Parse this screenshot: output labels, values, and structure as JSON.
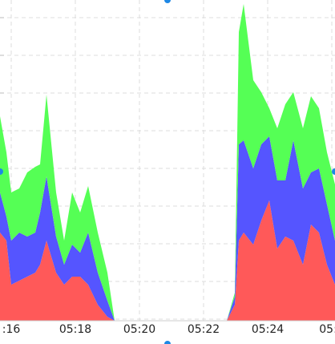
{
  "chart_data": {
    "type": "stacked-area",
    "x": [
      15.65,
      15.85,
      16,
      16.25,
      16.5,
      16.75,
      16.9,
      17.1,
      17.4,
      17.65,
      17.9,
      18.15,
      18.4,
      18.7,
      19,
      19.225,
      22.725,
      22.975,
      23.1,
      23.25,
      23.55,
      23.8,
      24.05,
      24.3,
      24.55,
      24.8,
      25.1,
      25.35,
      25.6,
      25.85,
      26.1
    ],
    "series": [
      {
        "color": "#ff5959",
        "values": [
          110,
          100,
          45,
          50,
          55,
          60,
          70,
          100,
          60,
          45,
          55,
          55,
          45,
          20,
          5,
          0,
          0,
          20,
          100,
          110,
          95,
          125,
          150,
          90,
          105,
          100,
          70,
          120,
          110,
          70,
          45
        ]
      },
      {
        "color": "#5555ff",
        "values": [
          50,
          30,
          55,
          60,
          50,
          50,
          65,
          80,
          45,
          25,
          40,
          30,
          65,
          40,
          20,
          0,
          0,
          10,
          120,
          115,
          95,
          95,
          80,
          85,
          70,
          125,
          95,
          65,
          80,
          75,
          55
        ]
      },
      {
        "color": "#55ff55",
        "values": [
          95,
          80,
          60,
          55,
          80,
          82,
          60,
          102,
          55,
          30,
          65,
          50,
          58,
          50,
          35,
          0,
          0,
          5,
          140,
          170,
          110,
          65,
          35,
          65,
          95,
          60,
          75,
          95,
          75,
          65,
          70
        ]
      }
    ],
    "xlim": [
      15.65,
      26.1
    ],
    "xticks": [
      {
        "value": 16,
        "label": ":16"
      },
      {
        "value": 18,
        "label": "05:18"
      },
      {
        "value": 20,
        "label": "05:20"
      },
      {
        "value": 22,
        "label": "05:22"
      },
      {
        "value": 24,
        "label": "05:24"
      },
      {
        "value": 26,
        "label": "05:2"
      }
    ],
    "ylim": [
      0,
      400
    ],
    "yticks": [
      0,
      47,
      94,
      141,
      188,
      235,
      282,
      329,
      376
    ],
    "grid": true
  }
}
